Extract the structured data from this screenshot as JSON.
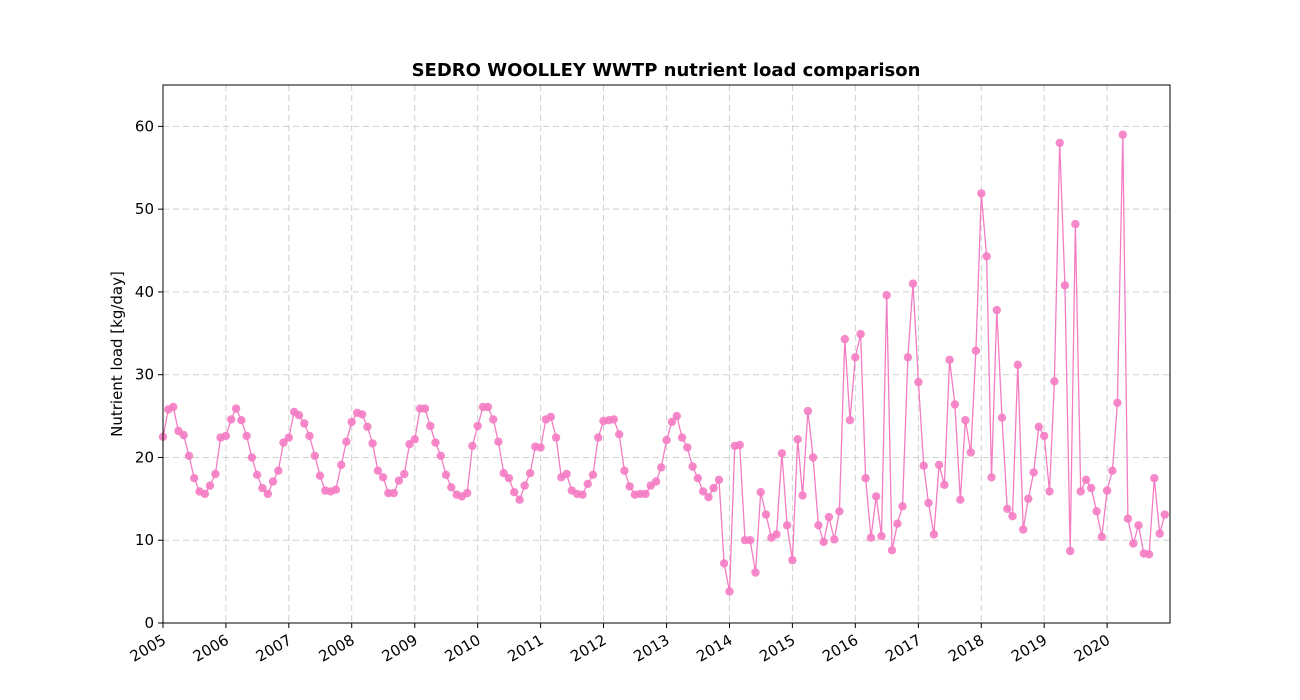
{
  "chart_data": {
    "type": "line",
    "title": "SEDRO WOOLLEY WWTP nutrient load comparison",
    "xlabel": "",
    "ylabel": "Nutrient load [kg/day]",
    "x_ticks": [
      "2005",
      "2006",
      "2007",
      "2008",
      "2009",
      "2010",
      "2011",
      "2012",
      "2013",
      "2014",
      "2015",
      "2016",
      "2017",
      "2018",
      "2019",
      "2020"
    ],
    "y_ticks": [
      "0",
      "10",
      "20",
      "30",
      "40",
      "50",
      "60"
    ],
    "xlim": [
      "2005-01-01",
      "2020-12-31"
    ],
    "ylim": [
      0,
      65
    ],
    "grid": true,
    "series": [
      {
        "color": "#f47cc3",
        "marker": "circle",
        "dates": [
          "2005-01-01",
          "2005-02-01",
          "2005-03-01",
          "2005-04-01",
          "2005-05-01",
          "2005-06-01",
          "2005-07-01",
          "2005-08-01",
          "2005-09-01",
          "2005-10-01",
          "2005-11-01",
          "2005-12-01",
          "2006-01-01",
          "2006-02-01",
          "2006-03-01",
          "2006-04-01",
          "2006-05-01",
          "2006-06-01",
          "2006-07-01",
          "2006-08-01",
          "2006-09-01",
          "2006-10-01",
          "2006-11-01",
          "2006-12-01",
          "2007-01-01",
          "2007-02-01",
          "2007-03-01",
          "2007-04-01",
          "2007-05-01",
          "2007-06-01",
          "2007-07-01",
          "2007-08-01",
          "2007-09-01",
          "2007-10-01",
          "2007-11-01",
          "2007-12-01",
          "2008-01-01",
          "2008-02-01",
          "2008-03-01",
          "2008-04-01",
          "2008-05-01",
          "2008-06-01",
          "2008-07-01",
          "2008-08-01",
          "2008-09-01",
          "2008-10-01",
          "2008-11-01",
          "2008-12-01",
          "2009-01-01",
          "2009-02-01",
          "2009-03-01",
          "2009-04-01",
          "2009-05-01",
          "2009-06-01",
          "2009-07-01",
          "2009-08-01",
          "2009-09-01",
          "2009-10-01",
          "2009-11-01",
          "2009-12-01",
          "2010-01-01",
          "2010-02-01",
          "2010-03-01",
          "2010-04-01",
          "2010-05-01",
          "2010-06-01",
          "2010-07-01",
          "2010-08-01",
          "2010-09-01",
          "2010-10-01",
          "2010-11-01",
          "2010-12-01",
          "2011-01-01",
          "2011-02-01",
          "2011-03-01",
          "2011-04-01",
          "2011-05-01",
          "2011-06-01",
          "2011-07-01",
          "2011-08-01",
          "2011-09-01",
          "2011-10-01",
          "2011-11-01",
          "2011-12-01",
          "2012-01-01",
          "2012-02-01",
          "2012-03-01",
          "2012-04-01",
          "2012-05-01",
          "2012-06-01",
          "2012-07-01",
          "2012-08-01",
          "2012-09-01",
          "2012-10-01",
          "2012-11-01",
          "2012-12-01",
          "2013-01-01",
          "2013-02-01",
          "2013-03-01",
          "2013-04-01",
          "2013-05-01",
          "2013-06-01",
          "2013-07-01",
          "2013-08-01",
          "2013-09-01",
          "2013-10-01",
          "2013-11-01",
          "2013-12-01",
          "2014-01-01",
          "2014-02-01",
          "2014-03-01",
          "2014-04-01",
          "2014-05-01",
          "2014-06-01",
          "2014-07-01",
          "2014-08-01",
          "2014-09-01",
          "2014-10-01",
          "2014-11-01",
          "2014-12-01",
          "2015-01-01",
          "2015-02-01",
          "2015-03-01",
          "2015-04-01",
          "2015-05-01",
          "2015-06-01",
          "2015-07-01",
          "2015-08-01",
          "2015-09-01",
          "2015-10-01",
          "2015-11-01",
          "2015-12-01",
          "2016-01-01",
          "2016-02-01",
          "2016-03-01",
          "2016-04-01",
          "2016-05-01",
          "2016-06-01",
          "2016-07-01",
          "2016-08-01",
          "2016-09-01",
          "2016-10-01",
          "2016-11-01",
          "2016-12-01",
          "2017-01-01",
          "2017-02-01",
          "2017-03-01",
          "2017-04-01",
          "2017-05-01",
          "2017-06-01",
          "2017-07-01",
          "2017-08-01",
          "2017-09-01",
          "2017-10-01",
          "2017-11-01",
          "2017-12-01",
          "2018-01-01",
          "2018-02-01",
          "2018-03-01",
          "2018-04-01",
          "2018-05-01",
          "2018-06-01",
          "2018-07-01",
          "2018-08-01",
          "2018-09-01",
          "2018-10-01",
          "2018-11-01",
          "2018-12-01",
          "2019-01-01",
          "2019-02-01",
          "2019-03-01",
          "2019-04-01",
          "2019-05-01",
          "2019-06-01",
          "2019-07-01",
          "2019-08-01",
          "2019-09-01",
          "2019-10-01",
          "2019-11-01",
          "2019-12-01",
          "2020-01-01",
          "2020-02-01",
          "2020-03-01",
          "2020-04-01",
          "2020-05-01",
          "2020-06-01",
          "2020-07-01",
          "2020-08-01",
          "2020-09-01",
          "2020-10-01",
          "2020-11-01",
          "2020-12-01"
        ],
        "values": [
          22.5,
          25.8,
          26.1,
          23.2,
          22.7,
          20.2,
          17.5,
          15.9,
          15.6,
          16.6,
          18.0,
          22.4,
          22.6,
          24.6,
          25.9,
          24.5,
          22.6,
          20.0,
          17.9,
          16.3,
          15.6,
          17.1,
          18.4,
          21.8,
          22.4,
          25.5,
          25.1,
          24.1,
          22.6,
          20.2,
          17.8,
          16.0,
          15.9,
          16.1,
          19.1,
          21.9,
          24.3,
          25.4,
          25.2,
          23.7,
          21.7,
          18.4,
          17.6,
          15.7,
          15.7,
          17.2,
          18.0,
          21.6,
          22.2,
          25.9,
          25.9,
          23.8,
          21.8,
          20.2,
          17.9,
          16.4,
          15.5,
          15.3,
          15.7,
          21.4,
          23.8,
          26.1,
          26.1,
          24.6,
          21.9,
          18.1,
          17.5,
          15.8,
          14.9,
          16.6,
          18.1,
          21.3,
          21.2,
          24.6,
          24.9,
          22.4,
          17.6,
          18.0,
          16.0,
          15.6,
          15.5,
          16.8,
          17.9,
          22.4,
          24.4,
          24.5,
          24.6,
          22.8,
          18.4,
          16.5,
          15.5,
          15.6,
          15.6,
          16.6,
          17.1,
          18.8,
          22.1,
          24.3,
          25.0,
          22.4,
          21.2,
          18.9,
          17.5,
          15.9,
          15.2,
          16.3,
          17.3,
          7.2,
          3.8,
          21.4,
          21.5,
          10.0,
          10.0,
          6.1,
          15.8,
          13.1,
          10.3,
          10.7,
          20.5,
          11.8,
          7.6,
          22.2,
          15.4,
          25.6,
          20.0,
          11.8,
          9.8,
          12.8,
          10.1,
          13.5,
          34.3,
          24.5,
          32.1,
          34.9,
          17.5,
          10.3,
          15.3,
          10.5,
          39.6,
          8.8,
          12.0,
          14.1,
          32.1,
          41.0,
          29.1,
          19.0,
          14.5,
          10.7,
          19.1,
          16.7,
          31.8,
          26.4,
          14.9,
          24.5,
          20.6,
          32.9,
          51.9,
          44.3,
          17.6,
          37.8,
          24.8,
          13.8,
          12.9,
          31.2,
          11.3,
          15.0,
          18.2,
          23.7,
          22.6,
          15.9,
          29.2,
          58.0,
          40.8,
          8.7,
          48.2,
          15.9,
          17.3,
          16.3,
          13.5,
          10.4,
          16.0,
          18.4,
          26.6,
          59.0,
          12.6,
          9.6,
          11.8,
          8.4,
          8.3,
          17.5,
          10.8,
          13.1
        ]
      }
    ]
  }
}
